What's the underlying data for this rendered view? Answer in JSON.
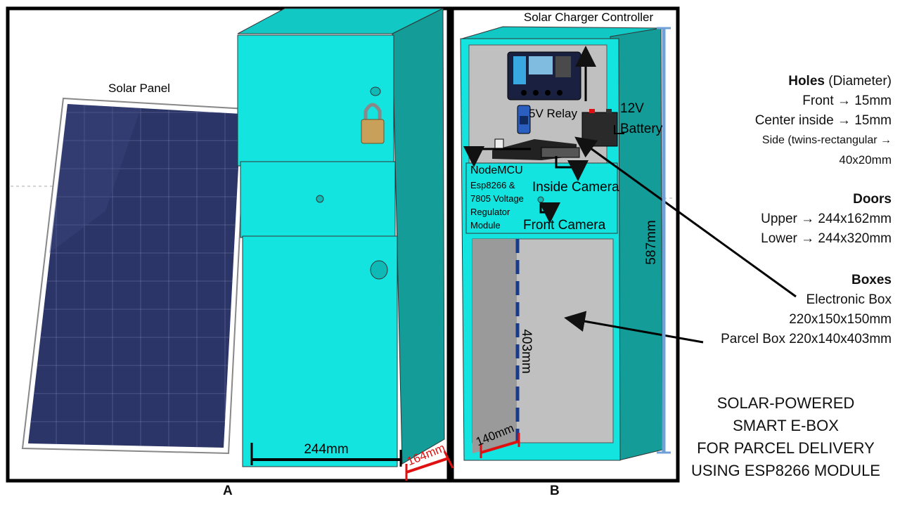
{
  "panels": {
    "a": "A",
    "b": "B"
  },
  "labels": {
    "solar_panel": "Solar Panel",
    "solar_charger": "Solar Charger Controller",
    "relay": "5V Relay",
    "battery_line1": "12V",
    "battery_line2": "Battery",
    "nodemcu_line1": "NodeMCU",
    "nodemcu_line2": "Esp8266 &",
    "nodemcu_line3": "7805 Voltage",
    "nodemcu_line4": "Regulator",
    "nodemcu_line5": "Module",
    "inside_camera": "Inside Camera",
    "front_camera": "Front Camera"
  },
  "dimensions": {
    "width_a": "244mm",
    "depth_a": "164mm",
    "height_b": "587mm",
    "parcel_height": "403mm",
    "parcel_depth": "140mm"
  },
  "specs": {
    "holes_title": "Holes",
    "holes_sub": " (Diameter)",
    "front": "Front → 15mm",
    "center": "Center inside → 15mm",
    "side_1": "Side (twins-rectangular →",
    "side_2": "40x20mm",
    "doors_title": "Doors",
    "upper": "Upper → 244x162mm",
    "lower": "Lower → 244x320mm",
    "boxes_title": "Boxes",
    "electronic_1": "Electronic Box",
    "electronic_2": "220x150x150mm",
    "parcel": "Parcel Box 220x140x403mm"
  },
  "title": {
    "line1": "SOLAR-POWERED",
    "line2": "SMART E-BOX",
    "line3": "FOR PARCEL DELIVERY",
    "line4": "USING ESP8266 MODULE"
  },
  "colors": {
    "cyan": "#14e4e0",
    "teal": "#139c98",
    "solar_blue": "#2b3568",
    "frame": "#000000",
    "dim_red": "#e01010",
    "dim_blue": "#6fa0d8"
  }
}
